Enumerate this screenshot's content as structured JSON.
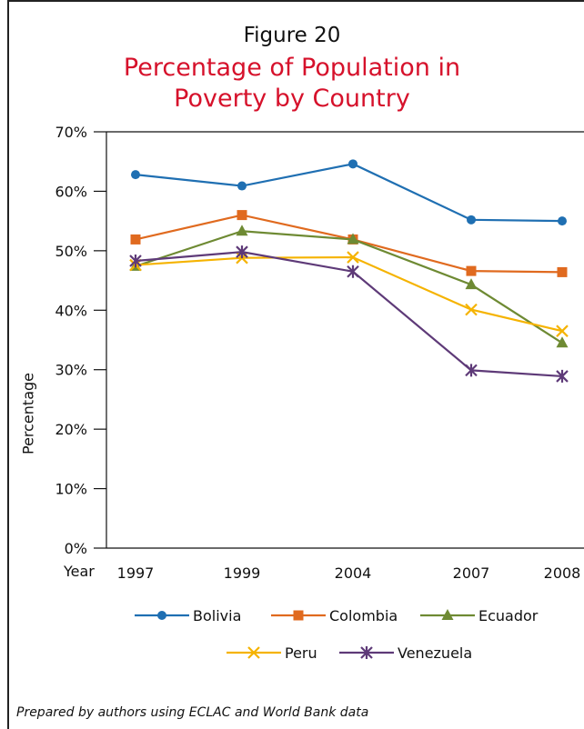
{
  "figure_label": "Figure 20",
  "source_note": "Prepared by authors using ECLAC and World Bank data",
  "colors": {
    "title": "#d6112b",
    "bolivia": "#1f6fb2",
    "colombia": "#e06a1f",
    "ecuador": "#6e8a33",
    "peru": "#f5b300",
    "venezuela": "#5e3a78"
  },
  "chart_data": {
    "type": "line",
    "title": "Percentage of Population in Poverty by Country",
    "title_lines": [
      "Percentage of Population in",
      "Poverty by Country"
    ],
    "xlabel": "Year",
    "ylabel": "Percentage",
    "categories": [
      "1997",
      "1999",
      "2004",
      "2007",
      "2008"
    ],
    "ylim": [
      0,
      70
    ],
    "yticks": [
      "0%",
      "10%",
      "20%",
      "30%",
      "40%",
      "50%",
      "60%",
      "70%"
    ],
    "legend_position": "bottom",
    "series": [
      {
        "name": "Bolivia",
        "marker": "circle",
        "color": "#1f6fb2",
        "values": [
          62.8,
          60.9,
          64.6,
          55.2,
          55.0
        ]
      },
      {
        "name": "Colombia",
        "marker": "square",
        "color": "#e06a1f",
        "values": [
          51.9,
          56.0,
          51.9,
          46.6,
          46.4
        ]
      },
      {
        "name": "Ecuador",
        "marker": "triangle",
        "color": "#6e8a33",
        "values": [
          47.4,
          53.3,
          51.9,
          44.3,
          34.5
        ]
      },
      {
        "name": "Peru",
        "marker": "x",
        "color": "#f5b300",
        "values": [
          47.6,
          48.8,
          48.9,
          40.1,
          36.5
        ]
      },
      {
        "name": "Venezuela",
        "marker": "star",
        "color": "#5e3a78",
        "values": [
          48.3,
          49.8,
          46.5,
          29.9,
          28.9
        ]
      }
    ]
  }
}
